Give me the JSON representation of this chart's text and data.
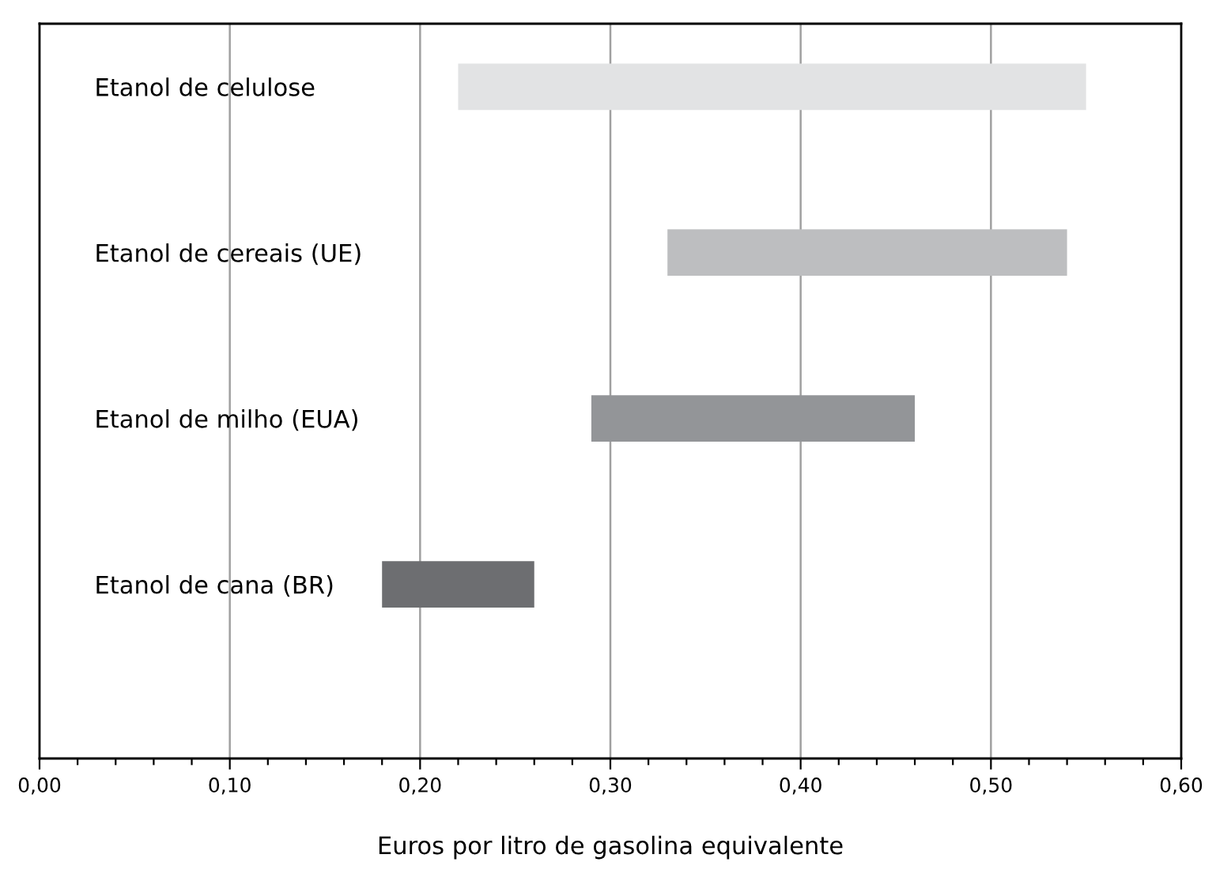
{
  "chart_data": {
    "type": "bar",
    "orientation": "horizontal",
    "xlabel": "Euros por litro de gasolina equivalente",
    "categories": [
      "Etanol de celulose",
      "Etanol de cereais (UE)",
      "Etanol de milho (EUA)",
      "Etanol de cana (BR)"
    ],
    "base": [
      0.22,
      0.33,
      0.29,
      0.18
    ],
    "values": [
      0.33,
      0.21,
      0.17,
      0.08
    ],
    "colors": [
      "#e2e3e4",
      "#bdbec0",
      "#939598",
      "#6d6e71"
    ],
    "xlim": [
      0,
      0.6
    ],
    "xticks": [
      {
        "value": 0,
        "label": "0,00"
      },
      {
        "value": 0.02,
        "label": null
      },
      {
        "value": 0.04,
        "label": null
      },
      {
        "value": 0.06,
        "label": null
      },
      {
        "value": 0.08,
        "label": null
      },
      {
        "value": 0.1,
        "label": "0,10"
      },
      {
        "value": 0.12,
        "label": null
      },
      {
        "value": 0.14,
        "label": null
      },
      {
        "value": 0.16,
        "label": null
      },
      {
        "value": 0.18,
        "label": null
      },
      {
        "value": 0.2,
        "label": "0,20"
      },
      {
        "value": 0.22,
        "label": null
      },
      {
        "value": 0.24,
        "label": null
      },
      {
        "value": 0.26,
        "label": null
      },
      {
        "value": 0.28,
        "label": null
      },
      {
        "value": 0.3,
        "label": "0,30"
      },
      {
        "value": 0.32,
        "label": null
      },
      {
        "value": 0.34,
        "label": null
      },
      {
        "value": 0.36,
        "label": null
      },
      {
        "value": 0.38,
        "label": null
      },
      {
        "value": 0.4,
        "label": "0,40"
      },
      {
        "value": 0.42,
        "label": null
      },
      {
        "value": 0.44,
        "label": null
      },
      {
        "value": 0.46,
        "label": null
      },
      {
        "value": 0.48,
        "label": null
      },
      {
        "value": 0.5,
        "label": "0,50"
      },
      {
        "value": 0.52,
        "label": null
      },
      {
        "value": 0.54,
        "label": null
      },
      {
        "value": 0.56,
        "label": null
      },
      {
        "value": 0.58,
        "label": null
      },
      {
        "value": 0.6,
        "label": "0,60"
      }
    ],
    "grid": "x",
    "legend": false
  }
}
